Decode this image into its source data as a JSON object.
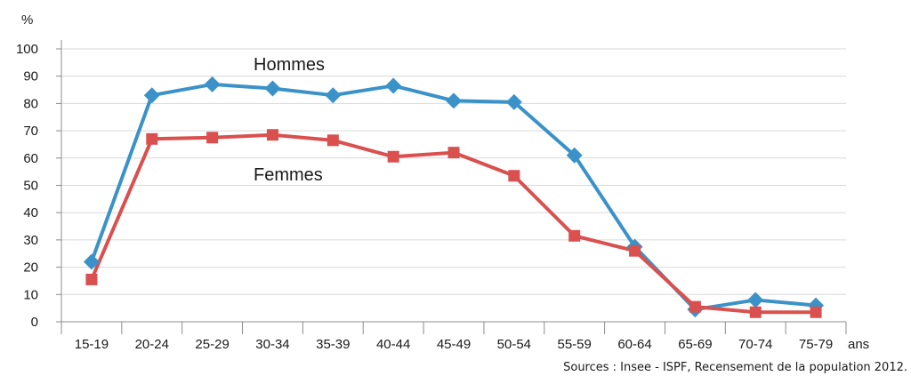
{
  "chart_data": {
    "type": "line",
    "ylabel": "%",
    "xunit": "ans",
    "ylim": [
      0,
      100
    ],
    "yticks": [
      "0",
      "10",
      "20",
      "30",
      "40",
      "50",
      "60",
      "70",
      "80",
      "90",
      "100"
    ],
    "categories": [
      "15-19",
      "20-24",
      "25-29",
      "30-34",
      "35-39",
      "40-44",
      "45-49",
      "50-54",
      "55-59",
      "60-64",
      "65-69",
      "70-74",
      "75-79"
    ],
    "grid": true,
    "series": [
      {
        "name": "Hommes",
        "color": "#3a92c8",
        "marker": "diamond",
        "values": [
          22,
          83,
          87,
          85.5,
          83,
          86.5,
          81,
          80.5,
          61,
          27.5,
          4.5,
          8,
          6
        ]
      },
      {
        "name": "Femmes",
        "color": "#d9504f",
        "marker": "square",
        "values": [
          15.5,
          67,
          67.5,
          68.5,
          66.5,
          60.5,
          62,
          53.5,
          31.5,
          26,
          5.5,
          3.5,
          3.5
        ]
      }
    ]
  },
  "source": "Sources : Insee - ISPF, Recensement de la population 2012."
}
